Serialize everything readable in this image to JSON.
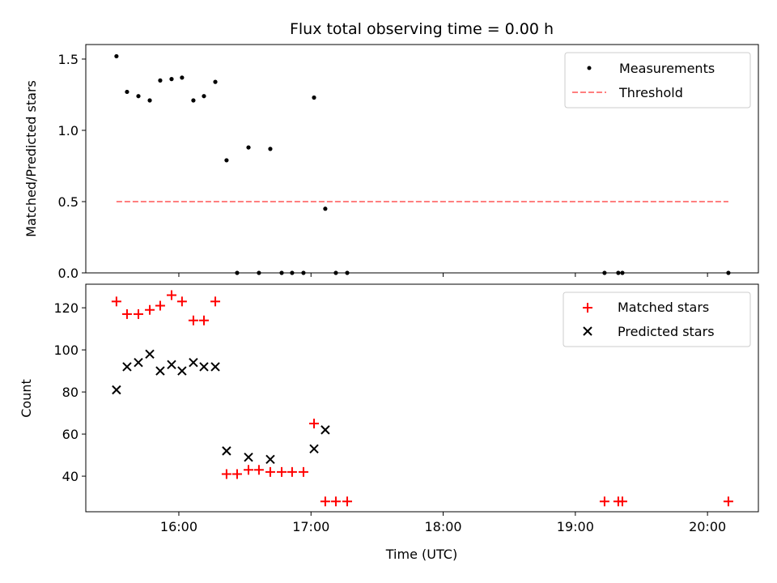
{
  "chart_data": [
    {
      "type": "scatter",
      "title": "Flux total observing time = 0.00 h",
      "xlabel": "",
      "ylabel": "Matched/Predicted stars",
      "xlim": [
        15.296,
        20.385
      ],
      "ylim": [
        0,
        1.602
      ],
      "yticks": [
        0.0,
        0.5,
        1.0,
        1.5
      ],
      "ytick_labels": [
        "0.0",
        "0.5",
        "1.0",
        "1.5"
      ],
      "xticks": [
        16,
        17,
        18,
        19,
        20
      ],
      "grid": false,
      "legend_placement": "top-right",
      "x_hours": [
        15.528,
        15.608,
        15.694,
        15.78,
        15.859,
        15.945,
        16.024,
        16.11,
        16.19,
        16.276,
        16.361,
        16.441,
        16.527,
        16.606,
        16.692,
        16.778,
        16.857,
        16.943,
        17.023,
        17.108,
        17.188,
        17.274,
        19.221,
        19.325,
        19.356,
        20.158
      ],
      "series": [
        {
          "name": "Measurements",
          "color": "#000000",
          "marker": "dot",
          "values": [
            1.52,
            1.27,
            1.24,
            1.21,
            1.35,
            1.36,
            1.37,
            1.21,
            1.24,
            1.34,
            0.79,
            0,
            0.88,
            0,
            0.87,
            0,
            0,
            0,
            1.23,
            0.45,
            0,
            0,
            0,
            0,
            0,
            0
          ]
        },
        {
          "name": "Threshold",
          "color": "#ff7f7f",
          "style": "dashed",
          "value": 0.5,
          "x_range": [
            15.528,
            20.158
          ]
        }
      ]
    },
    {
      "type": "scatter",
      "title": "",
      "xlabel": "Time (UTC)",
      "ylabel": "Count",
      "xlim": [
        15.296,
        20.385
      ],
      "ylim": [
        23.1,
        131.2
      ],
      "yticks": [
        40,
        60,
        80,
        100,
        120
      ],
      "ytick_labels": [
        "40",
        "60",
        "80",
        "100",
        "120"
      ],
      "xticks": [
        16,
        17,
        18,
        19,
        20
      ],
      "xtick_labels": [
        "16:00",
        "17:00",
        "18:00",
        "19:00",
        "20:00"
      ],
      "grid": false,
      "legend_placement": "top-right",
      "x_hours": [
        15.528,
        15.608,
        15.694,
        15.78,
        15.859,
        15.945,
        16.024,
        16.11,
        16.19,
        16.276,
        16.361,
        16.441,
        16.527,
        16.606,
        16.692,
        16.778,
        16.857,
        16.943,
        17.023,
        17.108,
        17.188,
        17.274,
        19.221,
        19.325,
        19.356,
        20.158
      ],
      "series": [
        {
          "name": "Matched stars",
          "color": "#ff0000",
          "marker": "plus",
          "values": [
            123,
            117,
            117,
            119,
            121,
            126,
            123,
            114,
            114,
            123,
            41,
            41,
            43,
            43,
            42,
            42,
            42,
            42,
            65,
            28,
            28,
            28,
            28,
            28,
            28,
            28
          ]
        },
        {
          "name": "Predicted stars",
          "color": "#000000",
          "marker": "x",
          "values": [
            81,
            92,
            94,
            98,
            90,
            93,
            90,
            94,
            92,
            92,
            52,
            null,
            49,
            null,
            48,
            null,
            null,
            null,
            53,
            62,
            null,
            null,
            null,
            null,
            null,
            null
          ]
        }
      ]
    }
  ]
}
